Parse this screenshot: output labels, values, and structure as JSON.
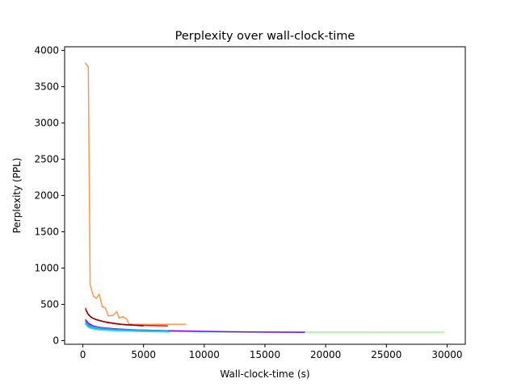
{
  "chart_data": {
    "type": "line",
    "title": "Perplexity over wall-clock-time",
    "xlabel": "Wall-clock-time (s)",
    "ylabel": "Perplexity (PPL)",
    "xlim": [
      -1500,
      31500
    ],
    "ylim": [
      -50,
      4050
    ],
    "xticks": [
      0,
      5000,
      10000,
      15000,
      20000,
      25000,
      30000
    ],
    "yticks": [
      0,
      500,
      1000,
      1500,
      2000,
      2500,
      3000,
      3500,
      4000
    ],
    "grid": false,
    "legend": "none",
    "series": [
      {
        "color": "#80ffb4",
        "values": [
          [
            250,
            255
          ],
          [
            500,
            210
          ],
          [
            800,
            180
          ],
          [
            1200,
            165
          ],
          [
            2000,
            150
          ],
          [
            3000,
            140
          ],
          [
            5000,
            130
          ],
          [
            7000,
            125
          ],
          [
            10000,
            120
          ],
          [
            15000,
            118
          ],
          [
            20000,
            117
          ],
          [
            25000,
            116
          ],
          [
            29800,
            115
          ]
        ]
      },
      {
        "color": "#b2f396",
        "values": [
          [
            300,
            240
          ],
          [
            600,
            200
          ],
          [
            1000,
            175
          ],
          [
            1500,
            160
          ],
          [
            3000,
            145
          ],
          [
            6000,
            135
          ],
          [
            10000,
            125
          ],
          [
            15000,
            120
          ],
          [
            20000,
            118
          ],
          [
            25000,
            116
          ],
          [
            29800,
            115
          ]
        ]
      },
      {
        "color": "#8000ff",
        "values": [
          [
            200,
            290
          ],
          [
            500,
            235
          ],
          [
            900,
            200
          ],
          [
            1500,
            180
          ],
          [
            2500,
            165
          ],
          [
            4000,
            150
          ],
          [
            6000,
            140
          ],
          [
            9000,
            130
          ],
          [
            12000,
            122
          ],
          [
            15000,
            118
          ],
          [
            18300,
            115
          ]
        ]
      },
      {
        "color": "#4a7bf7",
        "values": [
          [
            200,
            270
          ],
          [
            500,
            215
          ],
          [
            900,
            190
          ],
          [
            1500,
            175
          ],
          [
            2500,
            160
          ],
          [
            4000,
            150
          ],
          [
            7000,
            135
          ]
        ]
      },
      {
        "color": "#00b5eb",
        "values": [
          [
            200,
            245
          ],
          [
            450,
            200
          ],
          [
            800,
            175
          ],
          [
            1300,
            160
          ],
          [
            2000,
            150
          ],
          [
            3500,
            138
          ],
          [
            5000,
            130
          ],
          [
            7200,
            125
          ]
        ]
      },
      {
        "color": "#2adddd",
        "values": [
          [
            200,
            230
          ],
          [
            450,
            185
          ],
          [
            800,
            162
          ],
          [
            1300,
            150
          ],
          [
            2000,
            142
          ],
          [
            3500,
            132
          ],
          [
            5000,
            126
          ],
          [
            7200,
            120
          ]
        ]
      },
      {
        "color": "#ff954f",
        "values": [
          [
            200,
            3830
          ],
          [
            450,
            3770
          ],
          [
            600,
            770
          ],
          [
            850,
            620
          ],
          [
            1100,
            580
          ],
          [
            1350,
            640
          ],
          [
            1600,
            470
          ],
          [
            1850,
            450
          ],
          [
            2100,
            340
          ],
          [
            2500,
            350
          ],
          [
            2800,
            400
          ],
          [
            3000,
            310
          ],
          [
            3300,
            330
          ],
          [
            3600,
            300
          ],
          [
            3800,
            230
          ],
          [
            4200,
            225
          ],
          [
            8500,
            225
          ]
        ]
      },
      {
        "color": "#ff0000",
        "values": [
          [
            200,
            450
          ],
          [
            400,
            370
          ],
          [
            700,
            320
          ],
          [
            1000,
            295
          ],
          [
            1500,
            270
          ],
          [
            2000,
            250
          ],
          [
            2800,
            230
          ],
          [
            3500,
            218
          ],
          [
            5000,
            210
          ],
          [
            7000,
            205
          ]
        ]
      },
      {
        "color": "#8b0000",
        "values": [
          [
            250,
            420
          ],
          [
            500,
            350
          ],
          [
            800,
            310
          ],
          [
            1200,
            285
          ],
          [
            1800,
            260
          ],
          [
            2500,
            240
          ],
          [
            3200,
            225
          ],
          [
            4000,
            215
          ],
          [
            5000,
            205
          ]
        ]
      }
    ]
  }
}
